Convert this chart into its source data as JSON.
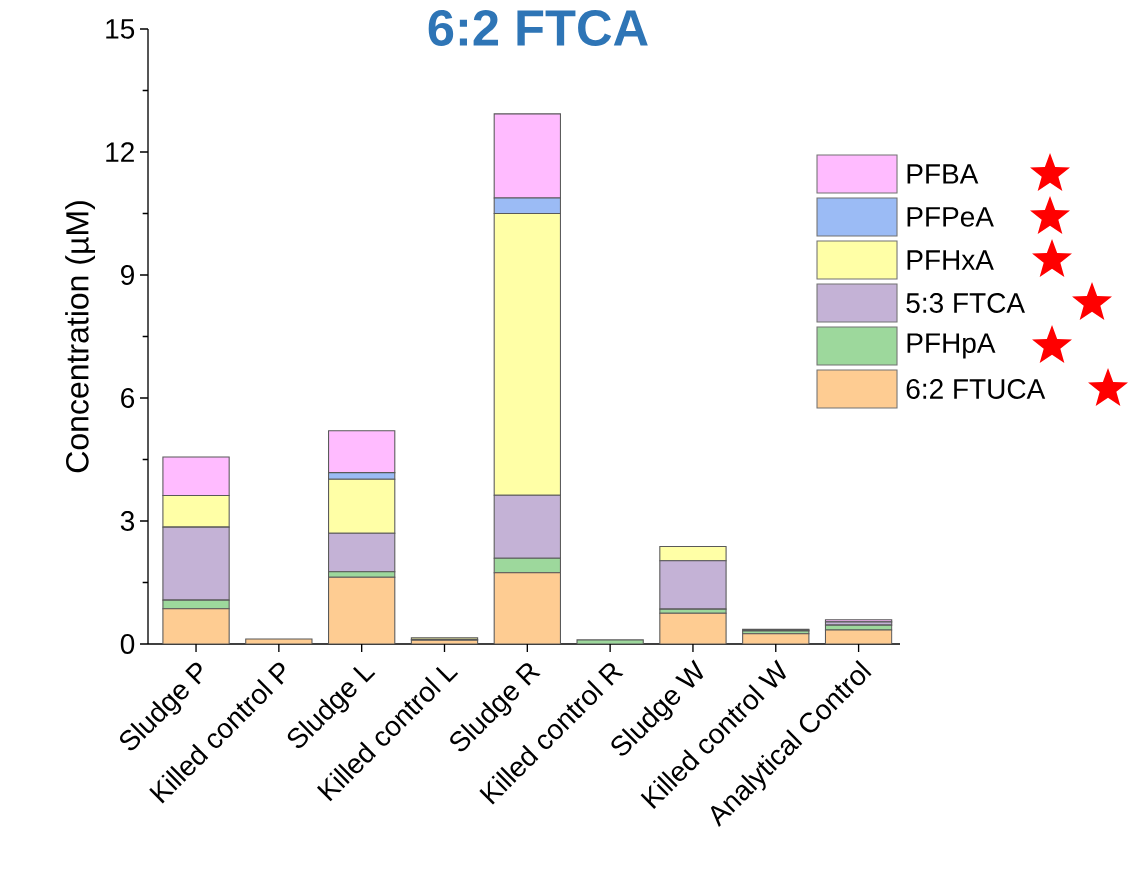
{
  "chart_data": {
    "type": "bar",
    "stacked": true,
    "title": "6:2 FTCA",
    "ylabel": "Concentration (µM)",
    "categories": [
      "Sludge P",
      "Killed control P",
      "Sludge L",
      "Killed control L",
      "Sludge R",
      "Killed control R",
      "Sludge W",
      "Killed control W",
      "Analytical Control"
    ],
    "series": [
      {
        "name": "6:2 FTUCA",
        "color": "#fecc92",
        "values": [
          0.86,
          0.12,
          1.63,
          0.09,
          1.74,
          null,
          0.75,
          0.25,
          0.34
        ]
      },
      {
        "name": "PFHpA",
        "color": "#9dd89c",
        "values": [
          0.21,
          null,
          0.13,
          0.02,
          0.35,
          0.1,
          0.1,
          0.07,
          0.12
        ]
      },
      {
        "name": "5:3 FTCA",
        "color": "#c4b2d6",
        "values": [
          1.78,
          0,
          0.94,
          0,
          1.54,
          0,
          1.18,
          null,
          0.08
        ]
      },
      {
        "name": "PFHxA",
        "color": "#ffffa6",
        "values": [
          0.77,
          null,
          1.32,
          0.04,
          6.87,
          0,
          0.35,
          0.02,
          null
        ]
      },
      {
        "name": "PFPeA",
        "color": "#9bbbf5",
        "values": [
          0,
          0,
          0.16,
          0,
          0.38,
          0,
          0,
          0,
          0
        ]
      },
      {
        "name": "PFBA",
        "color": "#ffbbff",
        "values": [
          0.94,
          0,
          1.02,
          0,
          2.05,
          0,
          0,
          0.02,
          0.05
        ]
      }
    ],
    "ylim": [
      0,
      15
    ],
    "yticks": [
      0,
      3,
      6,
      9,
      12,
      15
    ],
    "legend": "right"
  }
}
